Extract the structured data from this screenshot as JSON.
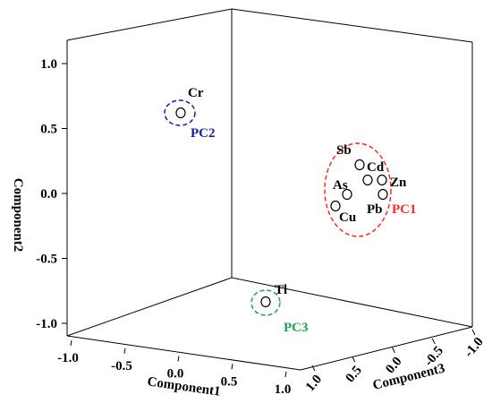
{
  "chart_data": {
    "type": "scatter",
    "projection": "3d",
    "axes": {
      "x": {
        "label": "Component1",
        "range": [
          -1.0,
          1.0
        ],
        "ticks": [
          "-1.0",
          "-0.5",
          "0.0",
          "0.5",
          "1.0"
        ],
        "tick_values": [
          -1.0,
          -0.5,
          0.0,
          0.5,
          1.0
        ]
      },
      "y": {
        "label": "Component2",
        "range": [
          -1.0,
          1.0
        ],
        "ticks": [
          "-1.0",
          "-0.5",
          "0.0",
          "0.5",
          "1.0"
        ],
        "tick_values": [
          -1.0,
          -0.5,
          0.0,
          0.5,
          1.0
        ]
      },
      "z": {
        "label": "Component3",
        "range": [
          1.0,
          -1.0
        ],
        "ticks": [
          "1.0",
          "0.5",
          "0.0",
          "-0.5",
          "-1.0"
        ],
        "tick_values": [
          1.0,
          0.5,
          0.0,
          -0.5,
          -1.0
        ]
      }
    },
    "points": [
      {
        "label": "Cr",
        "group": "PC2"
      },
      {
        "label": "Sb",
        "group": "PC1"
      },
      {
        "label": "Cd",
        "group": "PC1"
      },
      {
        "label": "Zn",
        "group": "PC1"
      },
      {
        "label": "As",
        "group": "PC1"
      },
      {
        "label": "Pb",
        "group": "PC1"
      },
      {
        "label": "Cu",
        "group": "PC1"
      },
      {
        "label": "Tl",
        "group": "PC3"
      }
    ],
    "groups": [
      {
        "name": "PC1",
        "color": "#ff2a2a"
      },
      {
        "name": "PC2",
        "color": "#1a1aa6"
      },
      {
        "name": "PC3",
        "color": "#1aa64a"
      }
    ],
    "grid": false
  }
}
